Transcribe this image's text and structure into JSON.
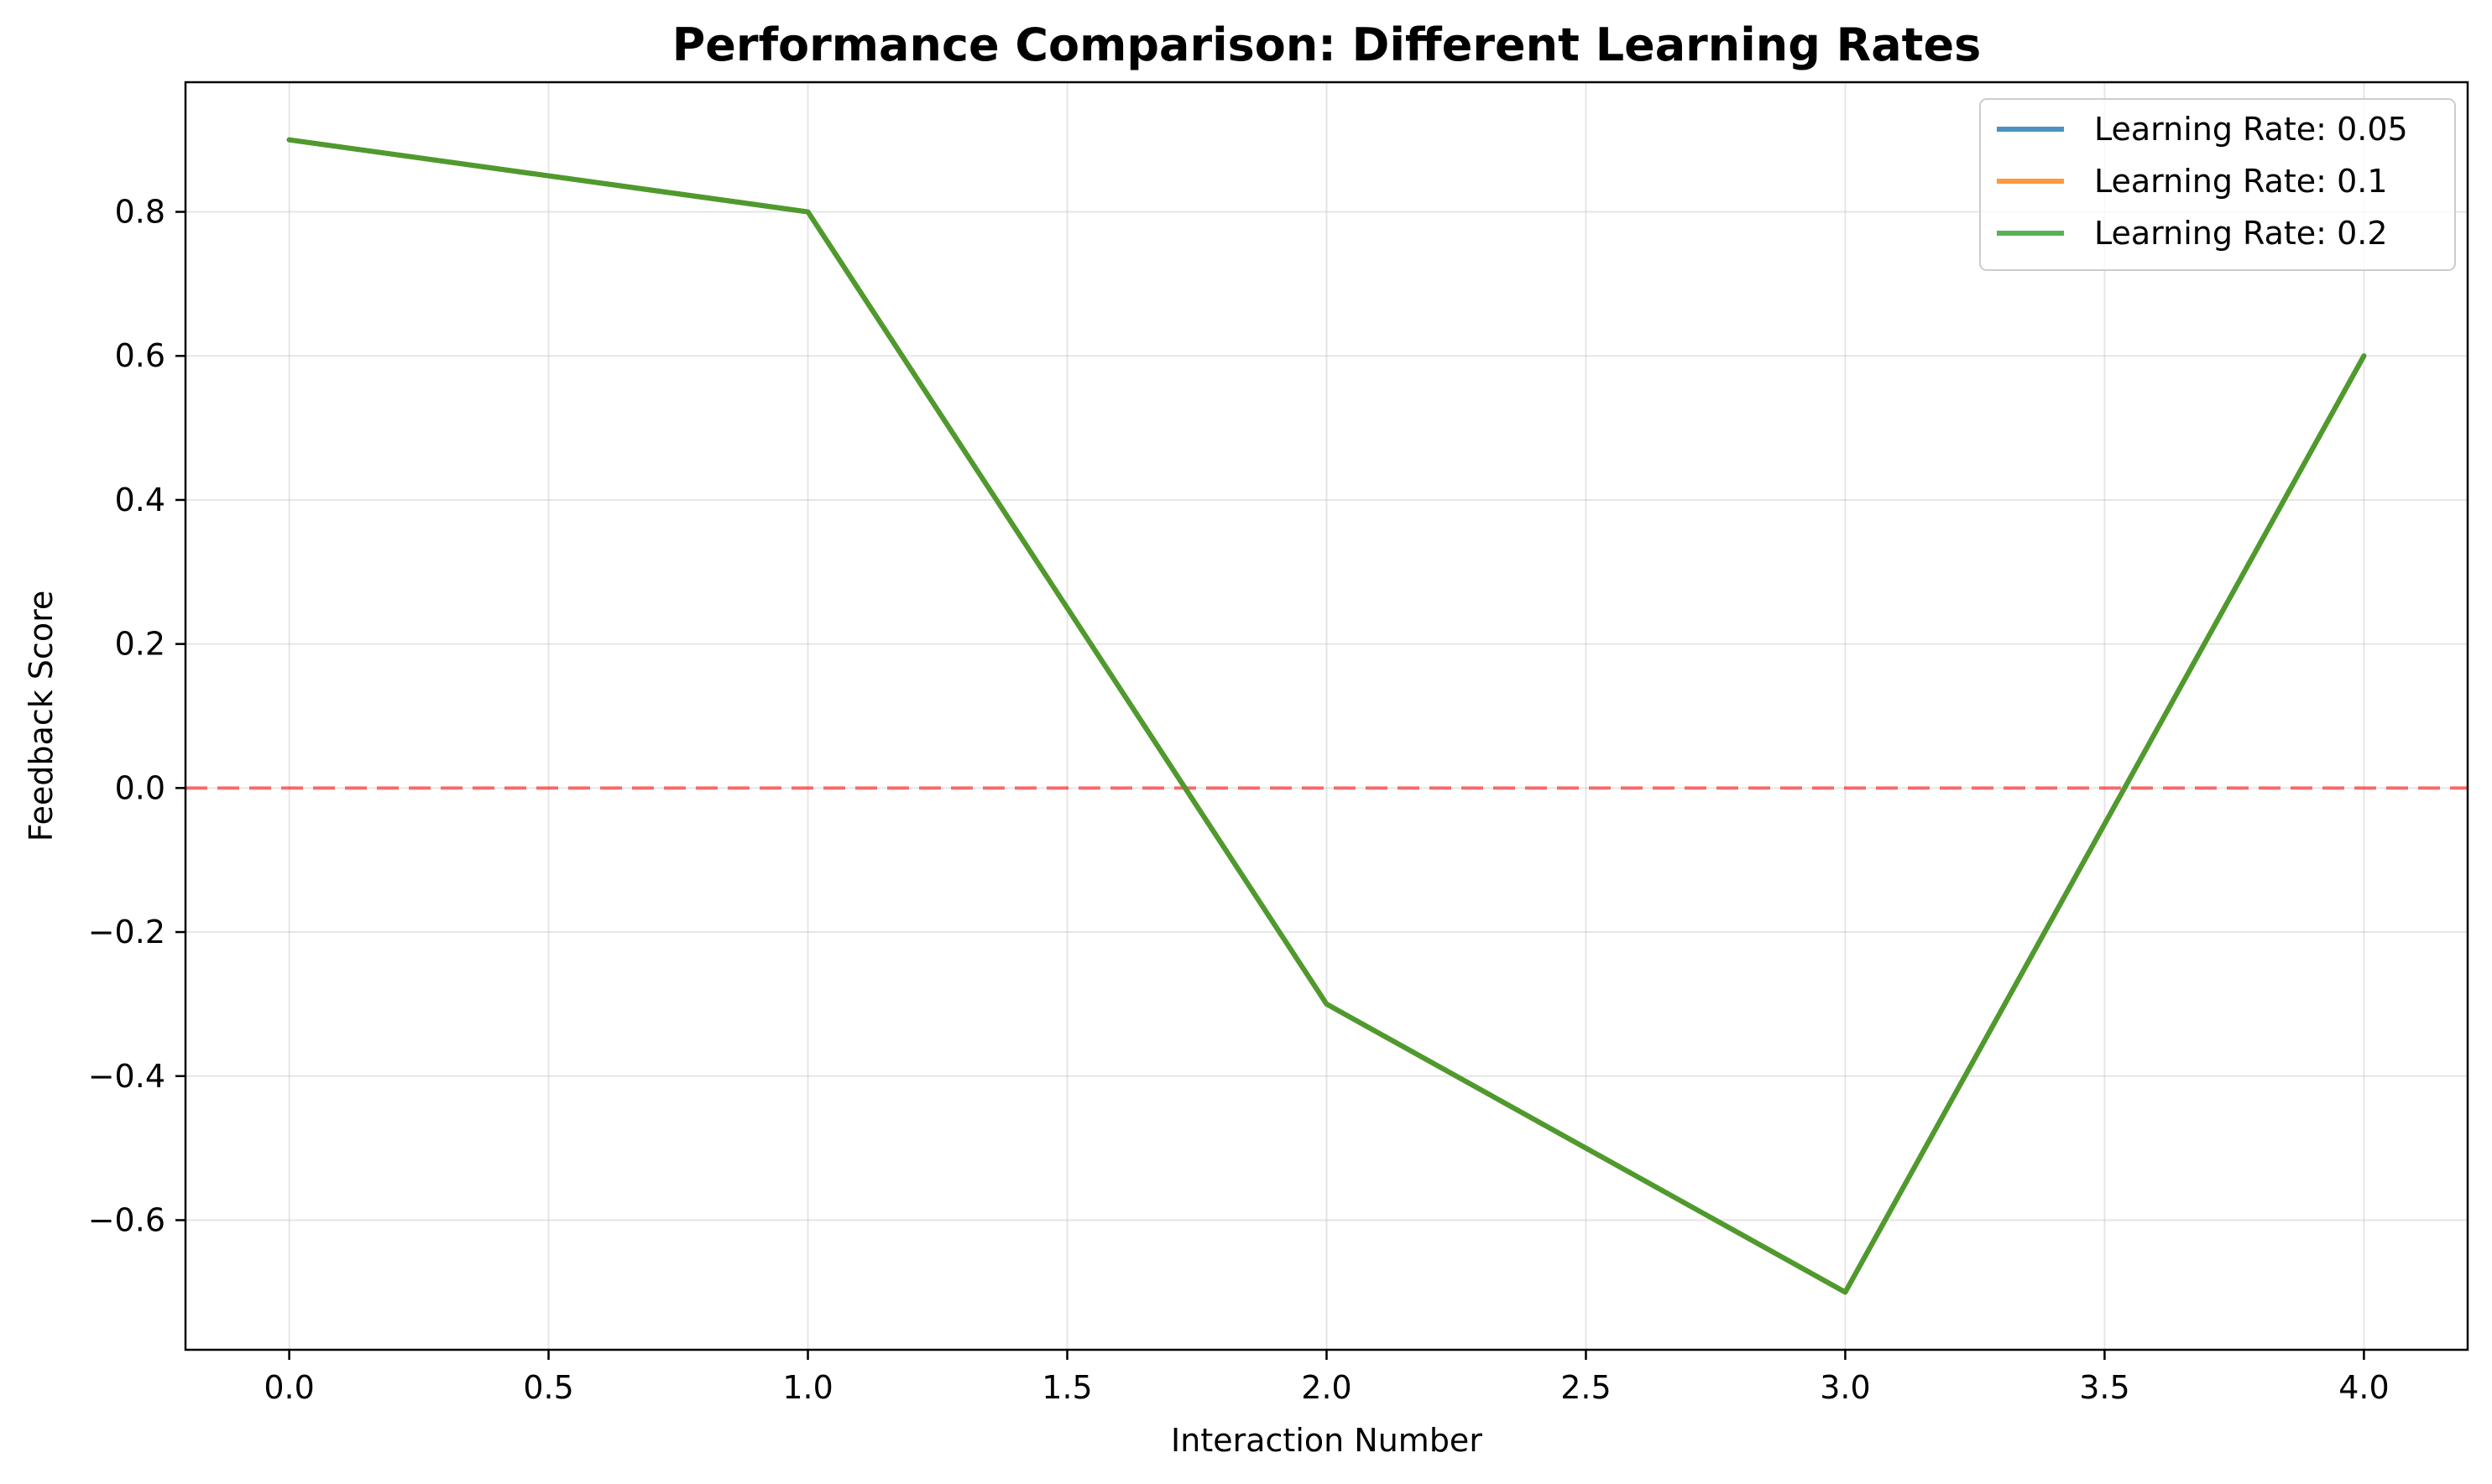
{
  "chart_data": {
    "type": "line",
    "title": "Performance Comparison: Different Learning Rates",
    "xlabel": "Interaction Number",
    "ylabel": "Feedback Score",
    "xlim": [
      -0.2,
      4.2
    ],
    "ylim": [
      -0.78,
      0.98
    ],
    "xticks": [
      0.0,
      0.5,
      1.0,
      1.5,
      2.0,
      2.5,
      3.0,
      3.5,
      4.0
    ],
    "xtick_labels": [
      "0.0",
      "0.5",
      "1.0",
      "1.5",
      "2.0",
      "2.5",
      "3.0",
      "3.5",
      "4.0"
    ],
    "yticks": [
      -0.6,
      -0.4,
      -0.2,
      0.0,
      0.2,
      0.4,
      0.6,
      0.8
    ],
    "ytick_labels": [
      "−0.6",
      "−0.4",
      "−0.2",
      "0.0",
      "0.2",
      "0.4",
      "0.6",
      "0.8"
    ],
    "grid": true,
    "legend_position": "top-right",
    "x": [
      0,
      1,
      2,
      3,
      4
    ],
    "series": [
      {
        "name": "Learning Rate: 0.05",
        "values": [
          0.9,
          0.8,
          -0.3,
          -0.7,
          0.6
        ],
        "color": "#1f77b4"
      },
      {
        "name": "Learning Rate: 0.1",
        "values": [
          0.9,
          0.8,
          -0.3,
          -0.7,
          0.6
        ],
        "color": "#ff7f0e"
      },
      {
        "name": "Learning Rate: 0.2",
        "values": [
          0.9,
          0.8,
          -0.3,
          -0.7,
          0.6
        ],
        "color": "#2ca02c"
      }
    ],
    "reference_line": {
      "y": 0.0,
      "style": "dashed",
      "color": "#ff0000"
    }
  }
}
